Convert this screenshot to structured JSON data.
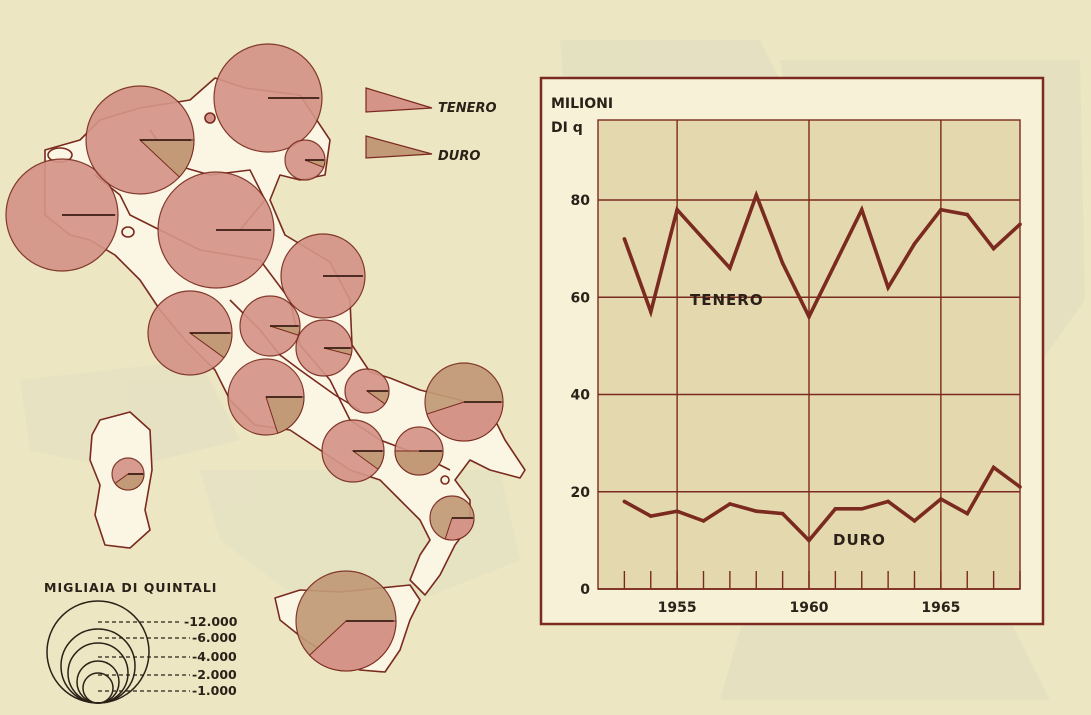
{
  "map": {
    "legend_wedges": [
      {
        "label": "TENERO",
        "color": "#d49488"
      },
      {
        "label": "DURO",
        "color": "#c29a78"
      }
    ],
    "size_legend": {
      "title": "MIGLIAIA DI QUINTALI",
      "levels": [
        "-12.000",
        "-6.000",
        "-4.000",
        "-2.000",
        "-1.000"
      ]
    },
    "colors": {
      "tenero": "#d49488",
      "duro": "#c29a78",
      "border": "#7a2a1e",
      "land": "#fbf6e4",
      "background": "#ece6c2"
    }
  },
  "chart_data": {
    "type": "line",
    "ylabel_line1": "MILIONI",
    "ylabel_line2": "DI q",
    "ylim": [
      0,
      80
    ],
    "yticks": [
      "0",
      "20",
      "40",
      "60",
      "80"
    ],
    "xlim": [
      1952,
      1968
    ],
    "xticks": [
      "1955",
      "1960",
      "1965"
    ],
    "grid": true,
    "x": [
      1953,
      1954,
      1955,
      1956,
      1957,
      1958,
      1959,
      1960,
      1961,
      1962,
      1963,
      1964,
      1965,
      1966,
      1967,
      1968
    ],
    "series": [
      {
        "name": "TENERO",
        "color": "#7a2a1e",
        "values": [
          72,
          57,
          78,
          72,
          66,
          81,
          67,
          56,
          67,
          78,
          62,
          71,
          78,
          77,
          70,
          75
        ]
      },
      {
        "name": "DURO",
        "color": "#7a2a1e",
        "values": [
          18,
          15,
          16,
          14,
          17.5,
          16,
          15.5,
          10,
          16.5,
          16.5,
          18,
          14,
          18.5,
          15.5,
          25,
          21
        ]
      }
    ]
  }
}
